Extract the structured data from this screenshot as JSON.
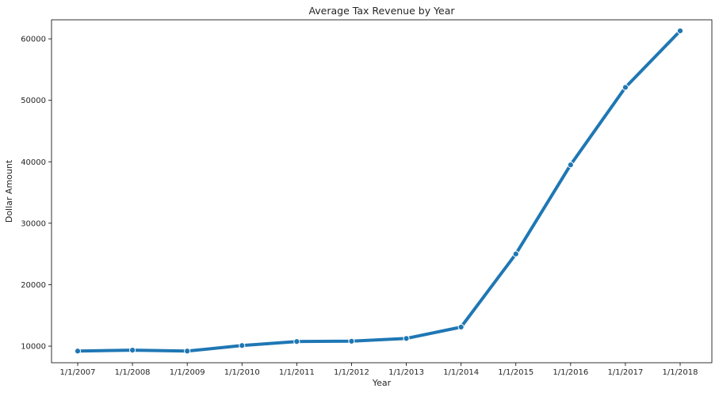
{
  "chart_data": {
    "type": "line",
    "title": "Average Tax Revenue by Year",
    "xlabel": "Year",
    "ylabel": "Dollar Amount",
    "categories": [
      "1/1/2007",
      "1/1/2008",
      "1/1/2009",
      "1/1/2010",
      "1/1/2011",
      "1/1/2012",
      "1/1/2013",
      "1/1/2014",
      "1/1/2015",
      "1/1/2016",
      "1/1/2017",
      "1/1/2018"
    ],
    "series": [
      {
        "values": [
          9200,
          9350,
          9200,
          10100,
          10750,
          10800,
          11250,
          13100,
          25000,
          39500,
          52100,
          61300
        ]
      }
    ],
    "ylim": [
      7300,
      63100
    ],
    "yticks": [
      10000,
      20000,
      30000,
      40000,
      50000,
      60000
    ],
    "ytick_labels": [
      "10000",
      "20000",
      "30000",
      "40000",
      "50000",
      "60000"
    ],
    "grid": false,
    "legend": "none",
    "colors": {
      "line": "#1f77b4",
      "marker_edge": "#ffffff",
      "axis": "#000000"
    }
  }
}
